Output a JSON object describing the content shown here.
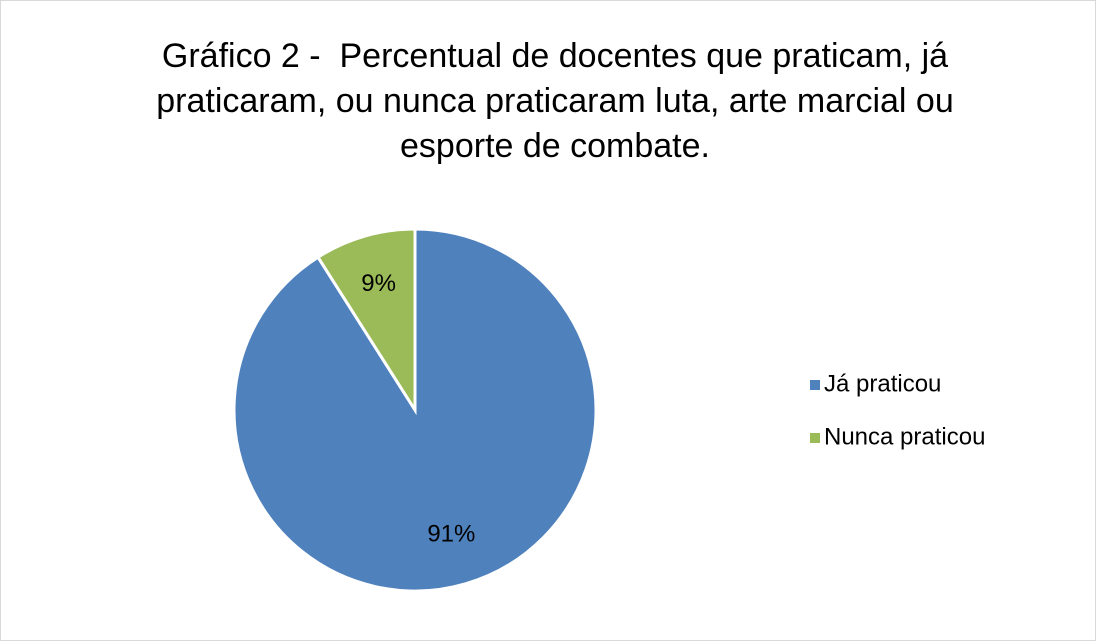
{
  "chart_data": {
    "type": "pie",
    "title": "Gráfico 2 -  Percentual de docentes que praticam, já praticaram, ou nunca praticaram luta, arte marcial ou esporte de combate.",
    "categories": [
      "Já praticou",
      "Nunca praticou"
    ],
    "values": [
      91,
      9
    ],
    "value_labels": [
      "91%",
      "9%"
    ],
    "colors": [
      "#4f81bd",
      "#9bbb59"
    ],
    "legend": "right"
  }
}
